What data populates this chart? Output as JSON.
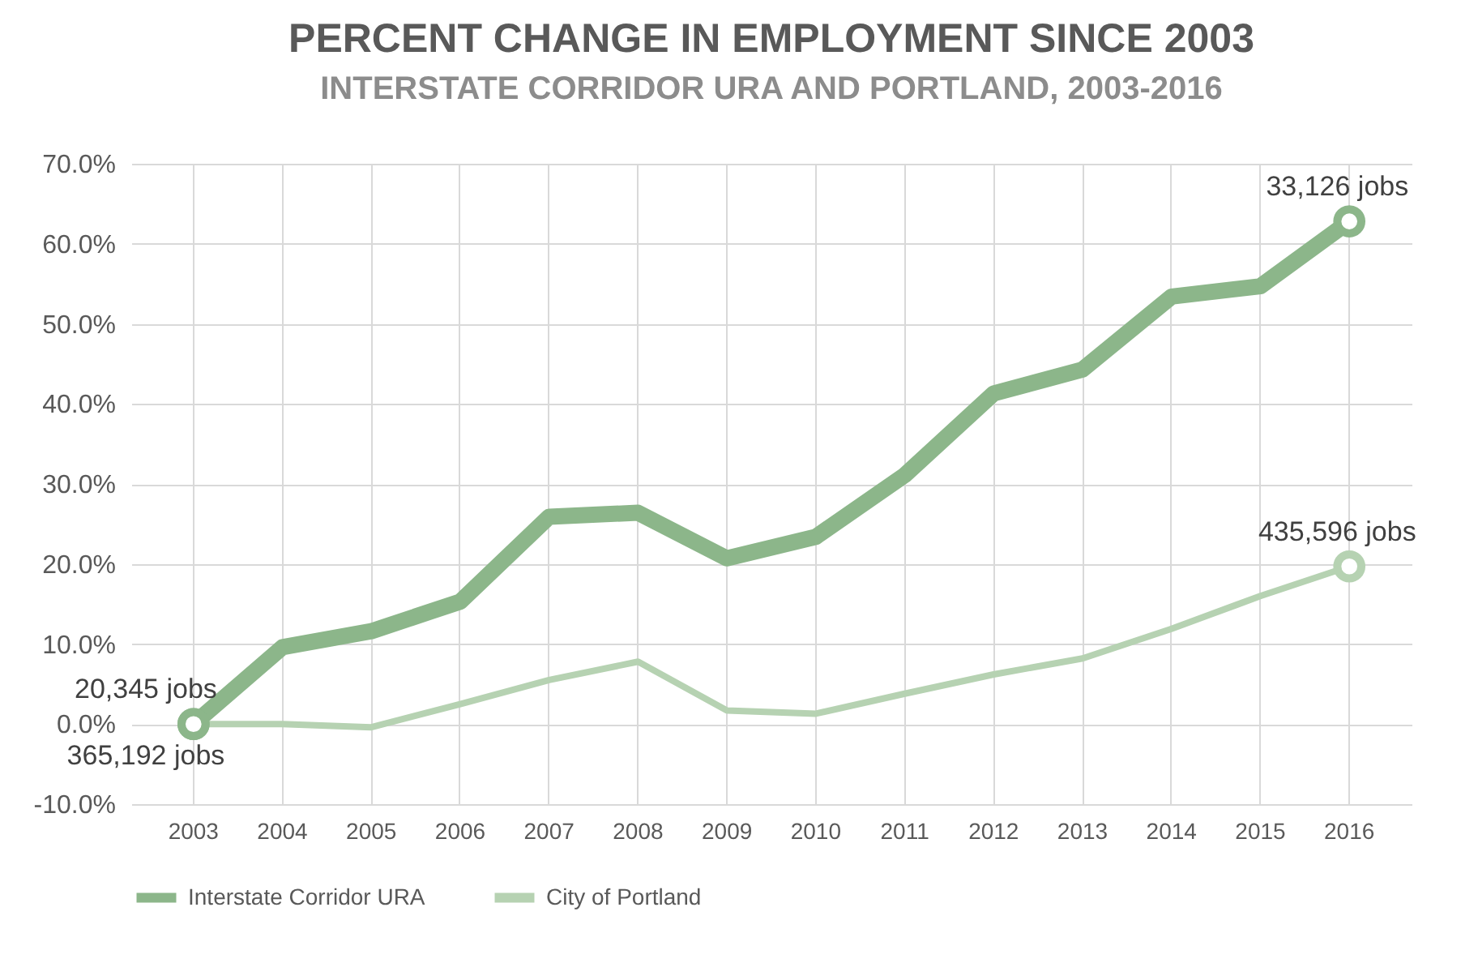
{
  "chart_data": {
    "type": "line",
    "title": "PERCENT CHANGE IN EMPLOYMENT SINCE 2003",
    "subtitle": "INTERSTATE CORRIDOR URA AND PORTLAND, 2003-2016",
    "categories": [
      "2003",
      "2004",
      "2005",
      "2006",
      "2007",
      "2008",
      "2009",
      "2010",
      "2011",
      "2012",
      "2013",
      "2014",
      "2015",
      "2016"
    ],
    "series": [
      {
        "name": "Interstate Corridor URA",
        "color": "#8cb68a",
        "values": [
          0,
          9.6,
          11.6,
          15.3,
          25.9,
          26.4,
          20.7,
          23.4,
          31.1,
          41.3,
          44.3,
          53.4,
          54.7,
          62.8
        ]
      },
      {
        "name": "City of Portland",
        "color": "#b6d2b2",
        "values": [
          0,
          0,
          -0.4,
          2.5,
          5.5,
          7.8,
          1.7,
          1.3,
          3.8,
          6.2,
          8.2,
          11.9,
          16.0,
          19.7
        ]
      }
    ],
    "ylim": [
      -10,
      70
    ],
    "yticks": [
      {
        "value": -10,
        "label": "-10.0%"
      },
      {
        "value": 0,
        "label": "0.0%"
      },
      {
        "value": 10,
        "label": "10.0%"
      },
      {
        "value": 20,
        "label": "20.0%"
      },
      {
        "value": 30,
        "label": "30.0%"
      },
      {
        "value": 40,
        "label": "40.0%"
      },
      {
        "value": 50,
        "label": "50.0%"
      },
      {
        "value": 60,
        "label": "60.0%"
      },
      {
        "value": 70,
        "label": "70.0%"
      }
    ],
    "annotations": [
      {
        "text": "20,345 jobs",
        "x": "2003",
        "y": 0
      },
      {
        "text": "365,192 jobs",
        "x": "2003",
        "y": 0
      },
      {
        "text": "33,126 jobs",
        "x": "2016",
        "y": 62.8
      },
      {
        "text": "435,596 jobs",
        "x": "2016",
        "y": 19.7
      }
    ],
    "grid": true,
    "legend": "bottom",
    "marker": "none",
    "line_style": "solid"
  }
}
